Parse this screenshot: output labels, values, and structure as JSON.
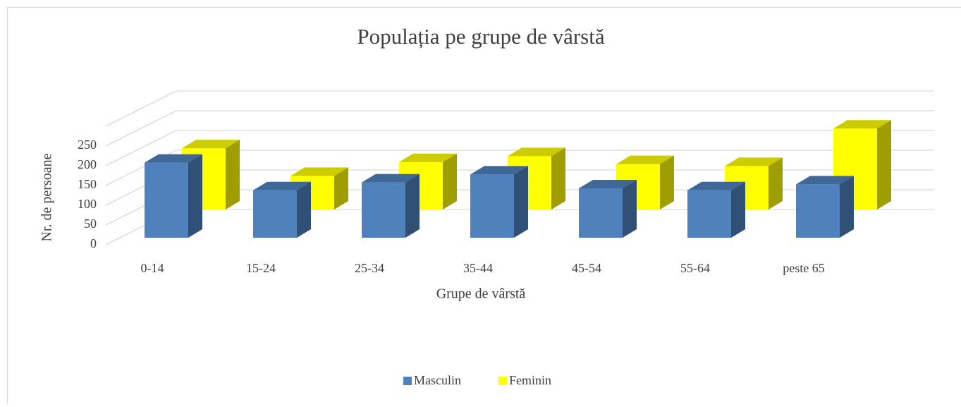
{
  "chart_data": {
    "type": "bar3d",
    "title": "Populația pe grupe de vârstă",
    "x_label": "Grupe de vârstă",
    "y_label": "Nr. de persoane",
    "categories": [
      "0-14",
      "15-24",
      "25-34",
      "35-44",
      "45-54",
      "55-64",
      "peste 65"
    ],
    "series": [
      {
        "name": "Masculin",
        "color": "#4f81bd",
        "values": [
          190,
          120,
          140,
          160,
          125,
          120,
          135
        ]
      },
      {
        "name": "Feminin",
        "color": "#ffff00",
        "values": [
          155,
          85,
          120,
          135,
          115,
          110,
          205
        ]
      }
    ],
    "ylim": [
      0,
      300
    ],
    "yticks": [
      0,
      50,
      100,
      150,
      200,
      250
    ],
    "grid": true,
    "legend": "bottom"
  }
}
